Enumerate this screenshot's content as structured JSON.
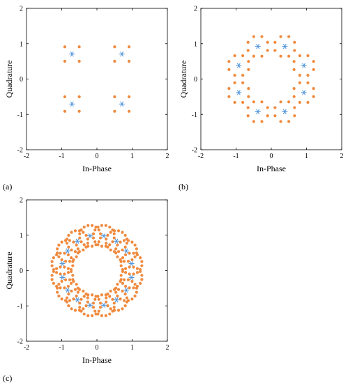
{
  "chart_data": [
    {
      "panel": "(a)",
      "type": "scatter",
      "xlabel": "In-Phase",
      "ylabel": "Quadrature",
      "xlim": [
        -2,
        2
      ],
      "ylim": [
        -2,
        2
      ],
      "xticks": [
        "-2",
        "-1",
        "0",
        "1",
        "2"
      ],
      "yticks": [
        "-2",
        "-1",
        "0",
        "1",
        "2"
      ],
      "grid": false,
      "series": [
        {
          "marker": "star",
          "color": "#4a90d9",
          "centers": {
            "count": 4,
            "radius": 1.0,
            "start_deg": 45
          }
        },
        {
          "marker": "dot",
          "color": "#f08a3e",
          "satellites": {
            "count": 4,
            "distance": 0.29,
            "start_deg": 45
          }
        }
      ]
    },
    {
      "panel": "(b)",
      "type": "scatter",
      "xlabel": "In-Phase",
      "ylabel": "Quadrature",
      "xlim": [
        -2,
        2
      ],
      "ylim": [
        -2,
        2
      ],
      "xticks": [
        "-2",
        "-1",
        "0",
        "1",
        "2"
      ],
      "yticks": [
        "-2",
        "-1",
        "0",
        "1",
        "2"
      ],
      "grid": false,
      "series": [
        {
          "marker": "star",
          "color": "#4a90d9",
          "centers": {
            "count": 8,
            "radius": 1.0,
            "start_deg": 22.5
          }
        },
        {
          "marker": "dot",
          "color": "#f08a3e",
          "satellites": {
            "count": 8,
            "distance": 0.3,
            "start_deg": 22.5
          }
        }
      ]
    },
    {
      "panel": "(c)",
      "type": "scatter",
      "xlabel": "In-Phase",
      "ylabel": "Quadrature",
      "xlim": [
        -2,
        2
      ],
      "ylim": [
        -2,
        2
      ],
      "xticks": [
        "-2",
        "-1",
        "0",
        "1",
        "2"
      ],
      "yticks": [
        "-2",
        "-1",
        "0",
        "1",
        "2"
      ],
      "grid": false,
      "series": [
        {
          "marker": "star",
          "color": "#4a90d9",
          "centers": {
            "count": 16,
            "radius": 1.0,
            "start_deg": 11.25
          }
        },
        {
          "marker": "dot",
          "color": "#f08a3e",
          "satellites": {
            "count": 16,
            "distance": 0.3,
            "start_deg": 11.25
          }
        }
      ]
    }
  ]
}
